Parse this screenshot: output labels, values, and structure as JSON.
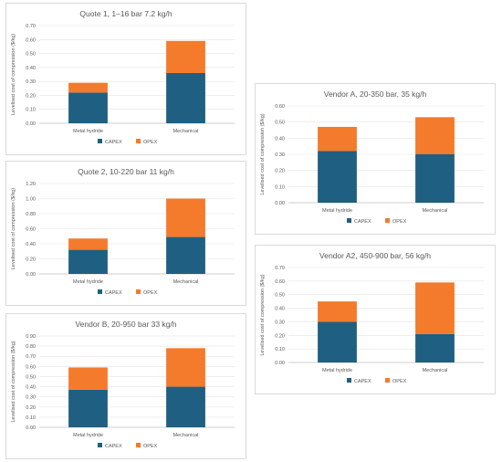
{
  "colors": {
    "capex": "#1f5f82",
    "opex": "#f47a2c"
  },
  "chart_data": [
    {
      "type": "bar",
      "stacked": true,
      "title": "Quote 1, 1–16 bar 7.2 kg/h",
      "ylabel": "Levelised cost of compression ($/kg)",
      "ylim": [
        0,
        0.7
      ],
      "yticks": [
        "0.00",
        "0.10",
        "0.20",
        "0.30",
        "0.40",
        "0.50",
        "0.60",
        "0.70"
      ],
      "categories": [
        "Metal hydride",
        "Mechanical"
      ],
      "series": [
        {
          "name": "CAPEX",
          "values": [
            0.22,
            0.36
          ]
        },
        {
          "name": "OPEX",
          "values": [
            0.07,
            0.23
          ]
        }
      ],
      "legend": "bottom",
      "grid": true
    },
    {
      "type": "bar",
      "stacked": true,
      "title": "Quote 2, 10-220 bar 11 kg/h",
      "ylabel": "Levelised cost of compression ($/kg)",
      "ylim": [
        0,
        1.2
      ],
      "yticks": [
        "0.00",
        "0.20",
        "0.40",
        "0.60",
        "0.80",
        "1.00",
        "1.20"
      ],
      "categories": [
        "Metal hydride",
        "Mechanical"
      ],
      "series": [
        {
          "name": "CAPEX",
          "values": [
            0.32,
            0.49
          ]
        },
        {
          "name": "OPEX",
          "values": [
            0.15,
            0.51
          ]
        }
      ],
      "legend": "bottom",
      "grid": true
    },
    {
      "type": "bar",
      "stacked": true,
      "title": "Vendor B, 20-950 bar 33 kg/h",
      "ylabel": "Levelised cost of compression ($/kg)",
      "ylim": [
        0,
        0.9
      ],
      "yticks": [
        "0.00",
        "0.10",
        "0.20",
        "0.30",
        "0.40",
        "0.50",
        "0.60",
        "0.70",
        "0.80",
        "0.90"
      ],
      "categories": [
        "Metal hydride",
        "Mechanical"
      ],
      "series": [
        {
          "name": "CAPEX",
          "values": [
            0.37,
            0.4
          ]
        },
        {
          "name": "OPEX",
          "values": [
            0.22,
            0.38
          ]
        }
      ],
      "legend": "bottom",
      "grid": true
    },
    {
      "type": "bar",
      "stacked": true,
      "title": "Vendor A, 20-350 bar, 35 kg/h",
      "ylabel": "Levelised cost of compression ($/kg)",
      "ylim": [
        0,
        0.6
      ],
      "yticks": [
        "0.00",
        "0.10",
        "0.20",
        "0.30",
        "0.40",
        "0.50",
        "0.60"
      ],
      "categories": [
        "Metal hydride",
        "Mechanical"
      ],
      "series": [
        {
          "name": "CAPEX",
          "values": [
            0.32,
            0.3
          ]
        },
        {
          "name": "OPEX",
          "values": [
            0.15,
            0.23
          ]
        }
      ],
      "legend": "bottom",
      "grid": true
    },
    {
      "type": "bar",
      "stacked": true,
      "title": "Vendor A2, 450-900 bar, 56 kg/h",
      "ylabel": "Levelised cost of compression ($/kg)",
      "ylim": [
        0,
        0.7
      ],
      "yticks": [
        "0.00",
        "0.10",
        "0.20",
        "0.30",
        "0.40",
        "0.50",
        "0.60",
        "0.70"
      ],
      "categories": [
        "Metal hydride",
        "Mechanical"
      ],
      "series": [
        {
          "name": "CAPEX",
          "values": [
            0.3,
            0.21
          ]
        },
        {
          "name": "OPEX",
          "values": [
            0.15,
            0.38
          ]
        }
      ],
      "legend": "bottom",
      "grid": true
    }
  ]
}
